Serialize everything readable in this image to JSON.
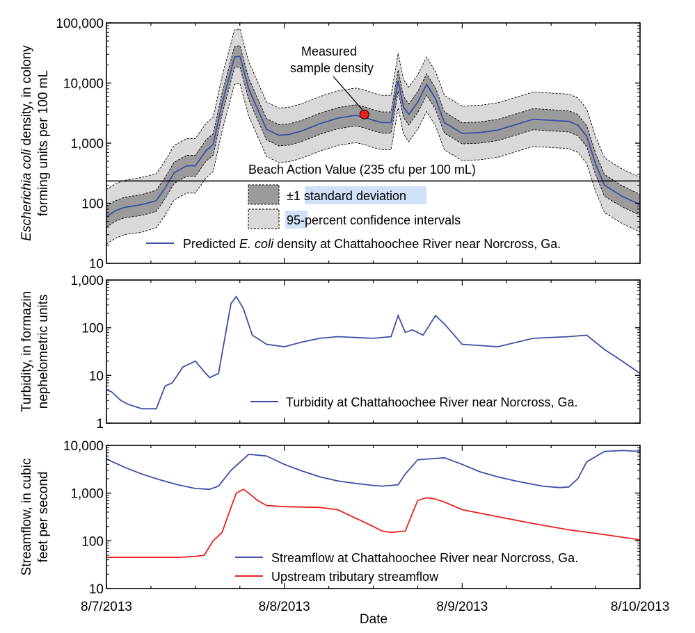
{
  "colors": {
    "blue": "#3a4fa6",
    "red": "#e8211d",
    "ci95": "#d9d9d9",
    "sd": "#9b9b9b",
    "highlight": "#cfe0f7",
    "marker": "#e8211d"
  },
  "x_axis": {
    "label": "Date",
    "ticks": [
      "8/7/2013",
      "8/8/2013",
      "8/9/2013",
      "8/10/2013"
    ],
    "range_days": [
      0,
      3
    ]
  },
  "chart_data": [
    {
      "type": "area",
      "scale": "log",
      "ylabel": "Escherichia coli density, in colony forming units per 100 mL",
      "ylabel_line1_italic": "Escherichia coli",
      "ylabel_line1_rest": " density, in colony",
      "ylabel_line2": "forming units per 100 mL",
      "ylim": [
        10,
        100000
      ],
      "yticks": [
        "10",
        "100",
        "1,000",
        "10,000",
        "100,000"
      ],
      "x": [
        0,
        0.05,
        0.1,
        0.2,
        0.28,
        0.33,
        0.38,
        0.45,
        0.5,
        0.56,
        0.6,
        0.65,
        0.72,
        0.75,
        0.8,
        0.9,
        0.97,
        1.03,
        1.1,
        1.2,
        1.3,
        1.4,
        1.45,
        1.5,
        1.55,
        1.6,
        1.64,
        1.67,
        1.7,
        1.75,
        1.8,
        1.85,
        1.9,
        2.0,
        2.1,
        2.2,
        2.4,
        2.6,
        2.65,
        2.7,
        2.75,
        2.8,
        2.9,
        3.0
      ],
      "series": [
        {
          "name": "Predicted E. coli density at Chattahoochee River near Norcross, Ga.",
          "values": [
            60,
            75,
            85,
            95,
            110,
            180,
            320,
            420,
            420,
            750,
            950,
            4500,
            27000,
            28000,
            8000,
            1700,
            1350,
            1400,
            1600,
            2100,
            2600,
            2900,
            2700,
            2400,
            2200,
            2200,
            11000,
            4000,
            3000,
            4800,
            9500,
            5500,
            2200,
            1450,
            1500,
            1650,
            2500,
            2300,
            2000,
            1300,
            450,
            200,
            130,
            95
          ]
        },
        {
          "name": "+1 standard deviation",
          "values": [
            90,
            110,
            125,
            140,
            165,
            270,
            480,
            630,
            630,
            1130,
            1430,
            6750,
            40500,
            42000,
            12000,
            2550,
            2030,
            2100,
            2400,
            3150,
            3900,
            4350,
            4050,
            3600,
            3300,
            3300,
            16500,
            6000,
            4500,
            7200,
            14250,
            8250,
            3300,
            2180,
            2250,
            2480,
            3750,
            3450,
            3000,
            1950,
            680,
            300,
            195,
            140
          ]
        },
        {
          "name": "-1 standard deviation",
          "values": [
            40,
            50,
            57,
            63,
            73,
            120,
            213,
            280,
            280,
            500,
            630,
            3000,
            18000,
            18700,
            5330,
            1130,
            900,
            930,
            1070,
            1400,
            1730,
            1930,
            1800,
            1600,
            1470,
            1470,
            7330,
            2670,
            2000,
            3200,
            6330,
            3670,
            1470,
            970,
            1000,
            1100,
            1670,
            1530,
            1330,
            870,
            300,
            130,
            87,
            63
          ]
        },
        {
          "name": "95-percent confidence upper",
          "values": [
            170,
            210,
            240,
            270,
            310,
            510,
            910,
            1190,
            1190,
            2130,
            2700,
            12800,
            76700,
            79500,
            22700,
            4830,
            3830,
            3980,
            4540,
            5960,
            7380,
            8240,
            7670,
            6820,
            6250,
            6250,
            31200,
            11400,
            8520,
            13600,
            27000,
            15600,
            6250,
            4120,
            4260,
            4690,
            7100,
            6530,
            5680,
            3690,
            1280,
            570,
            370,
            270
          ]
        },
        {
          "name": "95-percent confidence lower",
          "values": [
            21,
            26,
            30,
            33,
            39,
            63,
            113,
            148,
            148,
            264,
            335,
            1580,
            9500,
            9860,
            2820,
            600,
            475,
            493,
            563,
            739,
            915,
            1020,
            951,
            845,
            775,
            775,
            3870,
            1410,
            1060,
            1690,
            3350,
            1940,
            775,
            511,
            528,
            581,
            880,
            810,
            704,
            458,
            158,
            70,
            46,
            33
          ]
        }
      ],
      "reference_line": {
        "label": "Beach Action Value (235 cfu per 100 mL)",
        "value": 235
      },
      "measured_point": {
        "x": 1.45,
        "y": 3000
      },
      "annotation": [
        "Measured",
        "sample density"
      ],
      "legend": {
        "sd": {
          "prefix": "±1 ",
          "highlight": "standard deviation"
        },
        "ci": {
          "highlight": "95-",
          "suffix": "percent confidence intervals"
        },
        "line": {
          "prefix": "Predicted ",
          "italic": "E. coli",
          "suffix": " density at Chattahoochee River near Norcross, Ga."
        }
      }
    },
    {
      "type": "line",
      "scale": "log",
      "ylabel": "Turbidity, in formazin nephelometric units",
      "ylabel_line1": "Turbidity, in formazin",
      "ylabel_line2": "nephelometric units",
      "ylim": [
        1,
        1000
      ],
      "yticks": [
        "1",
        "10",
        "100",
        "1,000"
      ],
      "series": [
        {
          "name": "Turbidity at Chattahoochee River near Norcross, Ga.",
          "x": [
            0,
            0.03,
            0.08,
            0.12,
            0.2,
            0.28,
            0.33,
            0.37,
            0.43,
            0.5,
            0.55,
            0.58,
            0.63,
            0.7,
            0.73,
            0.77,
            0.82,
            0.9,
            1.0,
            1.1,
            1.2,
            1.3,
            1.5,
            1.6,
            1.64,
            1.68,
            1.72,
            1.78,
            1.85,
            1.9,
            2.0,
            2.2,
            2.4,
            2.6,
            2.7,
            2.8,
            2.9,
            3.0
          ],
          "values": [
            5,
            4.5,
            3,
            2.5,
            2,
            2,
            6,
            7,
            15,
            20,
            12,
            9,
            11,
            320,
            450,
            250,
            70,
            45,
            40,
            50,
            60,
            65,
            60,
            65,
            180,
            80,
            90,
            70,
            180,
            120,
            45,
            40,
            60,
            65,
            70,
            35,
            20,
            11
          ]
        }
      ],
      "legend_label": "Turbidity at Chattahoochee River near Norcross, Ga."
    },
    {
      "type": "line",
      "scale": "log",
      "ylabel": "Streamflow, in cubic feet per second",
      "ylabel_line1": "Streamflow, in cubic",
      "ylabel_line2": "feet per second",
      "ylim": [
        10,
        10000
      ],
      "yticks": [
        "10",
        "100",
        "1,000",
        "10,000"
      ],
      "series": [
        {
          "name": "Streamflow at Chattahoochee River near Norcross, Ga.",
          "x": [
            0,
            0.1,
            0.2,
            0.3,
            0.4,
            0.5,
            0.58,
            0.63,
            0.7,
            0.8,
            0.9,
            1.0,
            1.1,
            1.2,
            1.3,
            1.4,
            1.5,
            1.55,
            1.6,
            1.64,
            1.68,
            1.75,
            1.9,
            2.0,
            2.1,
            2.2,
            2.3,
            2.45,
            2.55,
            2.6,
            2.65,
            2.7,
            2.8,
            2.9,
            3.0
          ],
          "values": [
            5200,
            3500,
            2500,
            1900,
            1500,
            1250,
            1200,
            1400,
            3000,
            6500,
            6000,
            4000,
            2900,
            2200,
            1800,
            1600,
            1450,
            1400,
            1450,
            1500,
            2500,
            5000,
            5500,
            4000,
            2800,
            2200,
            1800,
            1400,
            1300,
            1350,
            2000,
            4500,
            7500,
            7800,
            7500
          ]
        },
        {
          "name": "Upstream tributary streamflow",
          "x": [
            0,
            0.2,
            0.4,
            0.5,
            0.55,
            0.6,
            0.65,
            0.7,
            0.73,
            0.77,
            0.8,
            0.85,
            0.9,
            1.0,
            1.2,
            1.3,
            1.4,
            1.5,
            1.55,
            1.6,
            1.68,
            1.75,
            1.8,
            1.85,
            1.9,
            2.0,
            2.2,
            2.4,
            2.6,
            2.8,
            3.0
          ],
          "values": [
            45,
            45,
            45,
            47,
            50,
            100,
            150,
            500,
            1000,
            1200,
            1000,
            700,
            550,
            520,
            500,
            450,
            300,
            200,
            160,
            150,
            160,
            700,
            800,
            750,
            650,
            450,
            320,
            230,
            170,
            135,
            105
          ]
        }
      ],
      "legend": [
        "Streamflow at Chattahoochee River near Norcross, Ga.",
        "Upstream tributary streamflow"
      ]
    }
  ]
}
